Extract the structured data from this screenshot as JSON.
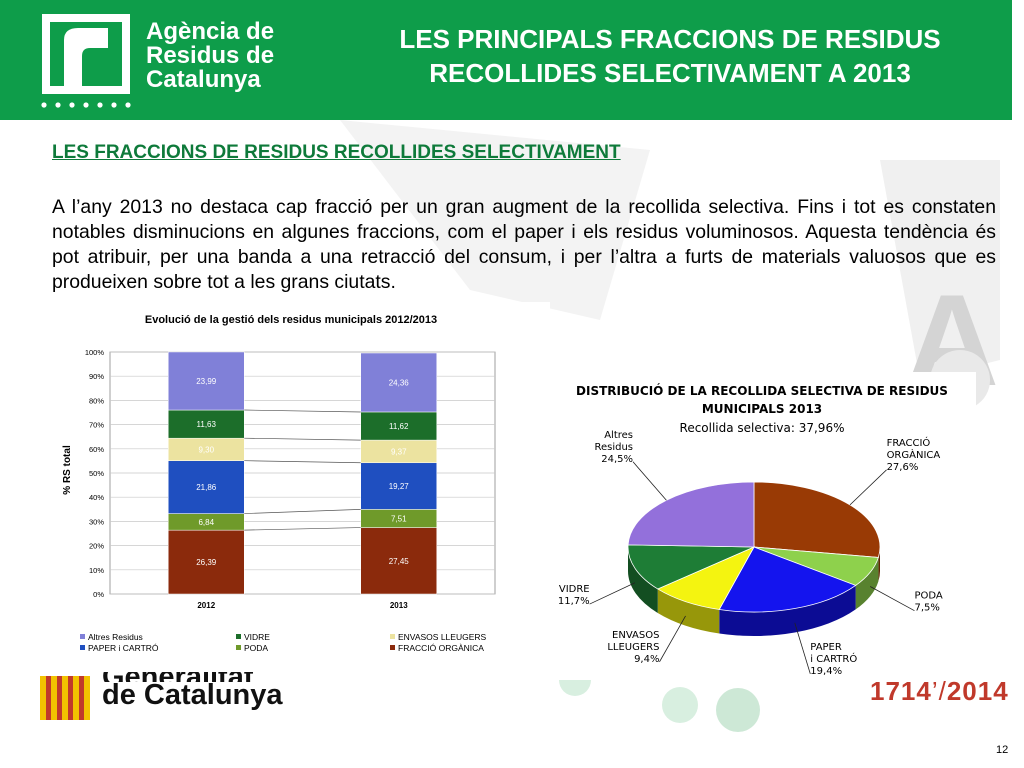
{
  "header": {
    "logo_lines": [
      "Agència de",
      "Residus de",
      "Catalunya"
    ],
    "title_line1": "LES PRINCIPALS FRACCIONS DE RESIDUS",
    "title_line2": "RECOLLIDES SELECTIVAMENT A 2013",
    "color": "#0e9d4a"
  },
  "section": {
    "heading": "LES FRACCIONS DE RESIDUS  RECOLLIDES SELECTIVAMENT",
    "paragraph": "A l’any 2013 no destaca cap fracció per un gran augment de la recollida selectiva. Fins i tot es constaten notables disminucions en algunes fraccions, com el paper i els residus voluminosos. Aquesta tendència és pot atribuir, per una banda a una retracció del consum, i per l’altra a furts de materials valuosos que es produeixen sobre tot a les grans ciutats."
  },
  "footer": {
    "gen_line1": "Generalitat",
    "gen_line2": "de Catalunya",
    "anniversary_left": "1714",
    "anniversary_right": "2014",
    "page_number": "12"
  },
  "chart_data": [
    {
      "type": "bar",
      "stacked": true,
      "title": "Evolució de la gestió dels residus municipals 2012/2013",
      "ylabel": "% RS total",
      "xlabel": "",
      "categories": [
        "2012",
        "2013"
      ],
      "ylim": [
        0,
        100
      ],
      "yticks": [
        "0%",
        "10%",
        "20%",
        "30%",
        "40%",
        "50%",
        "60%",
        "70%",
        "80%",
        "90%",
        "100%"
      ],
      "legend_position": "bottom",
      "series": [
        {
          "name": "FRACCIÓ ORGÀNICA",
          "values": [
            26.39,
            27.45
          ],
          "labels": [
            "26,39",
            "27,45"
          ],
          "color": "#8b2a0c"
        },
        {
          "name": "PODA",
          "values": [
            6.84,
            7.51
          ],
          "labels": [
            "6,84",
            "7,51"
          ],
          "color": "#6f9a2a"
        },
        {
          "name": "PAPER i CARTRÓ",
          "values": [
            21.86,
            19.27
          ],
          "labels": [
            "21,86",
            "19,27"
          ],
          "color": "#1f4fc0"
        },
        {
          "name": "ENVASOS LLEUGERS",
          "values": [
            9.3,
            9.37
          ],
          "labels": [
            "9,30",
            "9,37"
          ],
          "color": "#ece3a0"
        },
        {
          "name": "VIDRE",
          "values": [
            11.63,
            11.62
          ],
          "labels": [
            "11,63",
            "11,62"
          ],
          "color": "#1c6e2a"
        },
        {
          "name": "Altres Residus",
          "values": [
            23.99,
            24.36
          ],
          "labels": [
            "23,99",
            "24,36"
          ],
          "color": "#8080d8"
        }
      ],
      "legend_order": [
        "Altres Residus",
        "VIDRE",
        "ENVASOS LLEUGERS",
        "PAPER i CARTRÓ",
        "PODA",
        "FRACCIÓ ORGÀNICA"
      ]
    },
    {
      "type": "pie",
      "title_line1": "DISTRIBUCIÓ DE LA RECOLLIDA SELECTIVA DE RESIDUS",
      "title_line2": "MUNICIPALS 2013",
      "subtitle": "Recollida selectiva: 37,96%",
      "slices": [
        {
          "label": "FRACCIÓ ORGÀNICA",
          "value": 27.6,
          "text": "27,6%",
          "color": "#993a05"
        },
        {
          "label": "PODA",
          "value": 7.5,
          "text": "7,5%",
          "color": "#8ed14c"
        },
        {
          "label": "PAPER i CARTRÓ",
          "value": 19.4,
          "text": "19,4%",
          "color": "#1414ee"
        },
        {
          "label": "ENVASOS LLEUGERS",
          "value": 9.4,
          "text": "9,4%",
          "color": "#f4f410"
        },
        {
          "label": "VIDRE",
          "value": 11.7,
          "text": "11,7%",
          "color": "#1e7d36"
        },
        {
          "label": "Altres Residus",
          "value": 24.5,
          "text": "24,5%",
          "color": "#9370db"
        }
      ]
    }
  ]
}
